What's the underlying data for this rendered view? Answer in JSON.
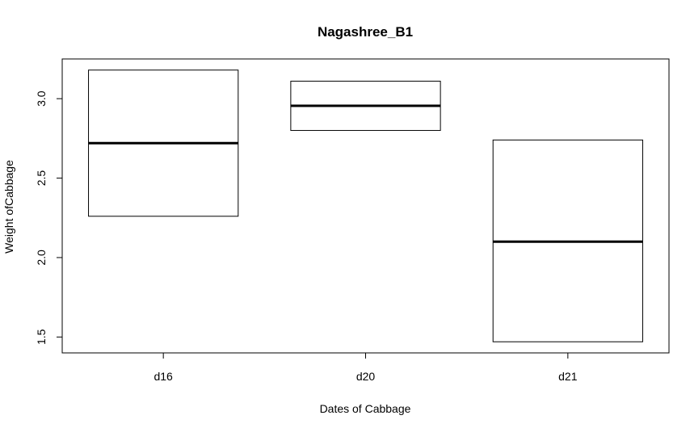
{
  "chart_data": {
    "type": "boxplot",
    "title": "Nagashree_B1",
    "xlabel": "Dates of Cabbage",
    "ylabel": "Weight ofCabbage",
    "categories": [
      "d16",
      "d20",
      "d21"
    ],
    "boxes": [
      {
        "category": "d16",
        "q1": 2.26,
        "median": 2.72,
        "q3": 3.18
      },
      {
        "category": "d20",
        "q1": 2.8,
        "median": 2.955,
        "q3": 3.11
      },
      {
        "category": "d21",
        "q1": 1.47,
        "median": 2.1,
        "q3": 2.74
      }
    ],
    "yticks": [
      "1.5",
      "2.0",
      "2.5",
      "3.0"
    ],
    "ylim": [
      1.4,
      3.25
    ],
    "grid": false,
    "legend": "none"
  }
}
